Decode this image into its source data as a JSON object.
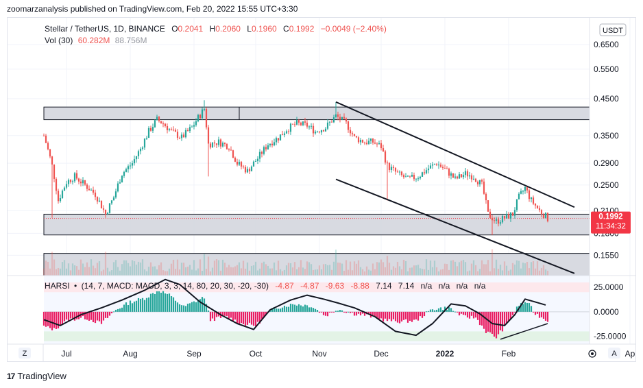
{
  "publisher_line": "zoomarzanalysis published on TradingView.com, Feb 20, 2022 15:55 UTC+3:30",
  "legend": {
    "symbol": "Stellar / TetherUS, 1D, BINANCE",
    "o_label": "O",
    "o": "0.2041",
    "h_label": "H",
    "h": "0.2060",
    "l_label": "L",
    "l": "0.1960",
    "c_label": "C",
    "c": "0.1992",
    "change": "−0.0049 (−2.40%)",
    "vol_label": "Vol (30)",
    "vol_1": "60.282M",
    "vol_2": "88.756M"
  },
  "currency_button": "USDT",
  "last_price": "0.1992",
  "countdown": "11:34:32",
  "harsi_legend": {
    "label": "HARSI",
    "params": "(14, 7, MACD: MACD, 3, 3, 14, 80, 20, 30, -20, -30)",
    "values": [
      "-4.87",
      "-4.87",
      "-9.63",
      "-8.88",
      "7.14",
      "7.14",
      "n/a",
      "n/a",
      "n/a",
      "n/a"
    ]
  },
  "footer": {
    "brand": "TradingView",
    "logo_text": "17"
  },
  "buttons": {
    "z": "Z",
    "a": "A"
  },
  "colors": {
    "up": "#26a69a",
    "down": "#ef5350",
    "line": "#131722",
    "osc_up": "#26a69a",
    "osc_down": "#e91e63",
    "price_badge": "#f23645"
  },
  "chart_data": [
    {
      "type": "candlestick",
      "title": "Stellar / TetherUS, 1D, BINANCE",
      "y_scale": "log",
      "y_ticks": [
        "0.6500",
        "0.5500",
        "0.4500",
        "0.3500",
        "0.2900",
        "0.2500",
        "0.2100",
        "0.1800",
        "0.1550"
      ],
      "x_ticks": [
        "Jul",
        "Aug",
        "Sep",
        "Oct",
        "Nov",
        "Dec",
        "2022",
        "Feb",
        "Ap"
      ],
      "ylim": [
        0.135,
        0.78
      ],
      "close_path": [
        {
          "x": "2021-06-20",
          "y": 0.35
        },
        {
          "x": "2021-06-24",
          "y": 0.285
        },
        {
          "x": "2021-06-27",
          "y": 0.225
        },
        {
          "x": "2021-07-01",
          "y": 0.255
        },
        {
          "x": "2021-07-05",
          "y": 0.265
        },
        {
          "x": "2021-07-10",
          "y": 0.25
        },
        {
          "x": "2021-07-15",
          "y": 0.235
        },
        {
          "x": "2021-07-20",
          "y": 0.205
        },
        {
          "x": "2021-07-24",
          "y": 0.23
        },
        {
          "x": "2021-07-28",
          "y": 0.27
        },
        {
          "x": "2021-08-02",
          "y": 0.29
        },
        {
          "x": "2021-08-06",
          "y": 0.32
        },
        {
          "x": "2021-08-10",
          "y": 0.36
        },
        {
          "x": "2021-08-14",
          "y": 0.39
        },
        {
          "x": "2021-08-17",
          "y": 0.38
        },
        {
          "x": "2021-08-21",
          "y": 0.36
        },
        {
          "x": "2021-08-26",
          "y": 0.345
        },
        {
          "x": "2021-08-31",
          "y": 0.37
        },
        {
          "x": "2021-09-06",
          "y": 0.42
        },
        {
          "x": "2021-09-08",
          "y": 0.33
        },
        {
          "x": "2021-09-13",
          "y": 0.335
        },
        {
          "x": "2021-09-18",
          "y": 0.325
        },
        {
          "x": "2021-09-22",
          "y": 0.29
        },
        {
          "x": "2021-09-27",
          "y": 0.275
        },
        {
          "x": "2021-10-02",
          "y": 0.3
        },
        {
          "x": "2021-10-07",
          "y": 0.33
        },
        {
          "x": "2021-10-12",
          "y": 0.345
        },
        {
          "x": "2021-10-16",
          "y": 0.365
        },
        {
          "x": "2021-10-21",
          "y": 0.38
        },
        {
          "x": "2021-10-26",
          "y": 0.375
        },
        {
          "x": "2021-10-30",
          "y": 0.36
        },
        {
          "x": "2021-11-04",
          "y": 0.37
        },
        {
          "x": "2021-11-09",
          "y": 0.4
        },
        {
          "x": "2021-11-14",
          "y": 0.38
        },
        {
          "x": "2021-11-18",
          "y": 0.345
        },
        {
          "x": "2021-11-23",
          "y": 0.335
        },
        {
          "x": "2021-11-27",
          "y": 0.335
        },
        {
          "x": "2021-12-01",
          "y": 0.325
        },
        {
          "x": "2021-12-04",
          "y": 0.285
        },
        {
          "x": "2021-12-09",
          "y": 0.27
        },
        {
          "x": "2021-12-14",
          "y": 0.26
        },
        {
          "x": "2021-12-19",
          "y": 0.265
        },
        {
          "x": "2021-12-24",
          "y": 0.28
        },
        {
          "x": "2021-12-28",
          "y": 0.29
        },
        {
          "x": "2022-01-02",
          "y": 0.275
        },
        {
          "x": "2022-01-06",
          "y": 0.26
        },
        {
          "x": "2022-01-11",
          "y": 0.27
        },
        {
          "x": "2022-01-15",
          "y": 0.265
        },
        {
          "x": "2022-01-19",
          "y": 0.25
        },
        {
          "x": "2022-01-22",
          "y": 0.205
        },
        {
          "x": "2022-01-26",
          "y": 0.195
        },
        {
          "x": "2022-01-30",
          "y": 0.2
        },
        {
          "x": "2022-02-03",
          "y": 0.205
        },
        {
          "x": "2022-02-06",
          "y": 0.23
        },
        {
          "x": "2022-02-09",
          "y": 0.245
        },
        {
          "x": "2022-02-12",
          "y": 0.225
        },
        {
          "x": "2022-02-16",
          "y": 0.21
        },
        {
          "x": "2022-02-20",
          "y": 0.1992
        }
      ],
      "wicks": [
        {
          "x": "2021-06-24",
          "low": 0.2
        },
        {
          "x": "2021-07-20",
          "low": 0.2
        },
        {
          "x": "2021-09-06",
          "high": 0.445
        },
        {
          "x": "2021-09-08",
          "low": 0.265
        },
        {
          "x": "2021-11-09",
          "high": 0.44
        },
        {
          "x": "2021-12-04",
          "low": 0.225
        },
        {
          "x": "2022-01-24",
          "low": 0.178
        }
      ],
      "zones": [
        {
          "from": 0.39,
          "to": 0.425
        },
        {
          "from": 0.178,
          "to": 0.205
        },
        {
          "from": 0.135,
          "to": 0.157
        }
      ],
      "last_price": 0.1992,
      "trendlines": [
        {
          "from": {
            "x": "2021-11-09",
            "y": 0.44
          },
          "to": {
            "x": "2022-03-05",
            "y": 0.215
          }
        },
        {
          "from": {
            "x": "2021-11-09",
            "y": 0.26
          },
          "to": {
            "x": "2022-03-05",
            "y": 0.137
          }
        }
      ]
    },
    {
      "type": "area",
      "title": "HARSI",
      "y_ticks": [
        "25.0000",
        "0.0000",
        "-25.0000"
      ],
      "ylim": [
        -33,
        37
      ],
      "bands": [
        {
          "from": 20,
          "to": 30
        },
        {
          "from": -30,
          "to": -20
        }
      ],
      "histogram": [
        {
          "x": "2021-06-20",
          "y": -15
        },
        {
          "x": "2021-06-25",
          "y": -18
        },
        {
          "x": "2021-07-02",
          "y": -8
        },
        {
          "x": "2021-07-10",
          "y": -6
        },
        {
          "x": "2021-07-18",
          "y": -12
        },
        {
          "x": "2021-07-25",
          "y": 2
        },
        {
          "x": "2021-08-01",
          "y": 10
        },
        {
          "x": "2021-08-08",
          "y": 14
        },
        {
          "x": "2021-08-15",
          "y": 22
        },
        {
          "x": "2021-08-20",
          "y": 17
        },
        {
          "x": "2021-08-27",
          "y": 5
        },
        {
          "x": "2021-09-06",
          "y": 15
        },
        {
          "x": "2021-09-09",
          "y": -8
        },
        {
          "x": "2021-09-17",
          "y": -5
        },
        {
          "x": "2021-09-24",
          "y": -12
        },
        {
          "x": "2021-10-01",
          "y": -14
        },
        {
          "x": "2021-10-10",
          "y": 4
        },
        {
          "x": "2021-10-20",
          "y": 8
        },
        {
          "x": "2021-10-28",
          "y": 6
        },
        {
          "x": "2021-11-04",
          "y": -4
        },
        {
          "x": "2021-11-10",
          "y": 3
        },
        {
          "x": "2021-11-18",
          "y": -2
        },
        {
          "x": "2021-11-25",
          "y": -4
        },
        {
          "x": "2021-12-02",
          "y": -8
        },
        {
          "x": "2021-12-09",
          "y": -10
        },
        {
          "x": "2021-12-18",
          "y": -9
        },
        {
          "x": "2021-12-26",
          "y": 3
        },
        {
          "x": "2022-01-03",
          "y": 4
        },
        {
          "x": "2022-01-10",
          "y": -5
        },
        {
          "x": "2022-01-16",
          "y": -6
        },
        {
          "x": "2022-01-21",
          "y": -20
        },
        {
          "x": "2022-01-26",
          "y": -26
        },
        {
          "x": "2022-02-01",
          "y": -10
        },
        {
          "x": "2022-02-06",
          "y": 7
        },
        {
          "x": "2022-02-10",
          "y": 10
        },
        {
          "x": "2022-02-14",
          "y": -2
        },
        {
          "x": "2022-02-20",
          "y": -9
        }
      ],
      "signal_line": [
        {
          "x": "2021-06-20",
          "y": -8
        },
        {
          "x": "2021-06-28",
          "y": -14
        },
        {
          "x": "2021-07-08",
          "y": -3
        },
        {
          "x": "2021-07-18",
          "y": 4
        },
        {
          "x": "2021-07-28",
          "y": 12
        },
        {
          "x": "2021-08-08",
          "y": 22
        },
        {
          "x": "2021-08-18",
          "y": 33
        },
        {
          "x": "2021-08-25",
          "y": 28
        },
        {
          "x": "2021-09-04",
          "y": 10
        },
        {
          "x": "2021-09-14",
          "y": -3
        },
        {
          "x": "2021-09-22",
          "y": -12
        },
        {
          "x": "2021-09-30",
          "y": -18
        },
        {
          "x": "2021-10-08",
          "y": 2
        },
        {
          "x": "2021-10-18",
          "y": 12
        },
        {
          "x": "2021-10-26",
          "y": 17
        },
        {
          "x": "2021-11-03",
          "y": 13
        },
        {
          "x": "2021-11-10",
          "y": 9
        },
        {
          "x": "2021-11-18",
          "y": 4
        },
        {
          "x": "2021-11-28",
          "y": -5
        },
        {
          "x": "2021-12-08",
          "y": -20
        },
        {
          "x": "2021-12-18",
          "y": -24
        },
        {
          "x": "2021-12-26",
          "y": -12
        },
        {
          "x": "2022-01-04",
          "y": 8
        },
        {
          "x": "2022-01-11",
          "y": 6
        },
        {
          "x": "2022-01-18",
          "y": -2
        },
        {
          "x": "2022-01-24",
          "y": -12
        },
        {
          "x": "2022-01-30",
          "y": -14
        },
        {
          "x": "2022-02-04",
          "y": -3
        },
        {
          "x": "2022-02-09",
          "y": 13
        },
        {
          "x": "2022-02-14",
          "y": 10
        },
        {
          "x": "2022-02-19",
          "y": 7
        }
      ],
      "trendlines": [
        {
          "from": {
            "x": "2022-01-28",
            "y": -28
          },
          "to": {
            "x": "2022-02-20",
            "y": -12
          }
        }
      ]
    }
  ]
}
